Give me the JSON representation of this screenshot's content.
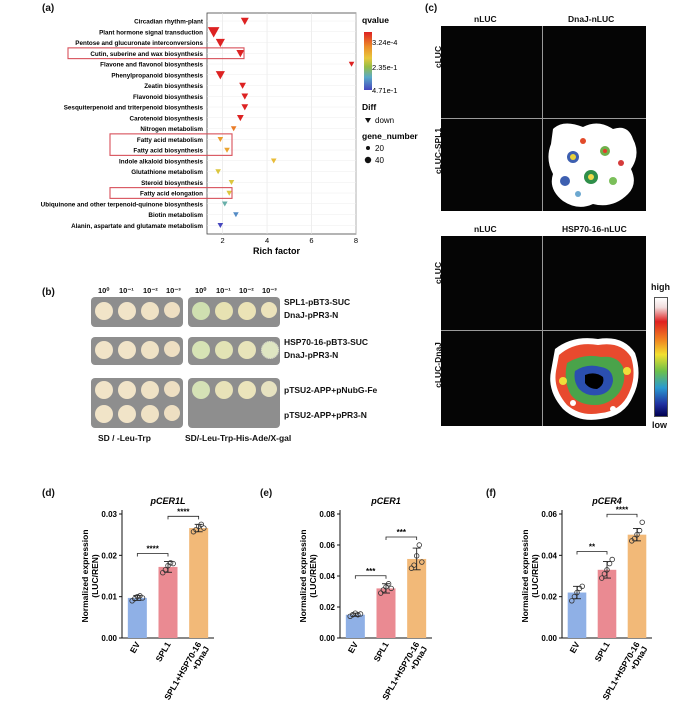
{
  "panel_labels": {
    "a": "(a)",
    "b": "(b)",
    "c": "(c)",
    "d": "(d)",
    "e": "(e)",
    "f": "(f)"
  },
  "chart_a": {
    "xlabel": "Rich factor",
    "xticks": [
      "2",
      "4",
      "6",
      "8"
    ],
    "legend": {
      "qvalue_title": "qvalue",
      "qvalue_labels": [
        "3.24e-4",
        "2.35e-1",
        "4.71e-1"
      ],
      "diff_title": "Diff",
      "diff_label": "down",
      "gene_title": "gene_number",
      "gene_labels": [
        "20",
        "40"
      ]
    }
  },
  "chart_data": [
    {
      "type": "scatter",
      "xlabel": "Rich factor",
      "xlim": [
        1.3,
        8.0
      ],
      "categories": [
        "Circadian rhythm-plant",
        "Plant hormone signal transduction",
        "Pentose and glucuronate interconversions",
        "Cutin, suberine and wax biosynthesis",
        "Flavone and flavonol biosynthesis",
        "Phenylpropanoid biosynthesis",
        "Zeatin biosynthesis",
        "Flavonoid biosynthesis",
        "Sesquiterpenoid and triterpenoid biosynthesis",
        "Carotenoid biosynthesis",
        "Nitrogen metabolism",
        "Fatty acid metabolism",
        "Fatty acid biosynthesis",
        "Indole alkaloid biosynthesis",
        "Glutathione metabolism",
        "Steroid biosynthesis",
        "Fatty acid elongation",
        "Ubiquinone and other terpenoid-quinone biosynthesis",
        "Biotin metabolism",
        "Alanin, aspartate and glutamate metabolism"
      ],
      "x": [
        3.0,
        1.6,
        1.9,
        2.8,
        7.8,
        1.9,
        2.9,
        3.0,
        3.0,
        2.8,
        2.5,
        1.9,
        2.2,
        4.3,
        1.8,
        2.4,
        2.3,
        2.1,
        2.6,
        1.9
      ],
      "qvalue": [
        0.0003,
        0.0003,
        0.0003,
        0.0003,
        0.0003,
        0.0003,
        0.0003,
        0.0003,
        0.0003,
        0.0003,
        0.08,
        0.12,
        0.13,
        0.17,
        0.2,
        0.2,
        0.2,
        0.32,
        0.38,
        0.47
      ],
      "gene_number": [
        30,
        45,
        35,
        30,
        20,
        35,
        25,
        25,
        25,
        25,
        20,
        20,
        20,
        20,
        20,
        20,
        20,
        20,
        20,
        20
      ],
      "highlighted": [
        "Cutin, suberine and wax biosynthesis",
        "Fatty acid metabolism",
        "Fatty acid biosynthesis",
        "Fatty acid elongation"
      ]
    },
    {
      "type": "bar",
      "title": "pCER1L",
      "ylabel": "Normalized expression (LUC/REN)",
      "categories": [
        "EV",
        "SPL1",
        "SPL1+HSP70-16 +DnaJ"
      ],
      "values": [
        0.0097,
        0.0172,
        0.0266
      ],
      "errors": [
        0.0006,
        0.0013,
        0.0009
      ],
      "points": [
        [
          0.009,
          0.0095,
          0.01,
          0.0102,
          0.0097
        ],
        [
          0.0158,
          0.0165,
          0.0175,
          0.0182,
          0.018
        ],
        [
          0.0257,
          0.0262,
          0.027,
          0.0275,
          0.0266
        ]
      ],
      "yticks": [
        "0.00",
        "0.01",
        "0.02",
        "0.03"
      ],
      "ylim": [
        0,
        0.03
      ],
      "sig": [
        "****",
        "****"
      ],
      "colors": [
        "#8fb0e6",
        "#ea8a92",
        "#f2b978"
      ]
    },
    {
      "type": "bar",
      "title": "pCER1",
      "ylabel": "Normalized expression (LUC/REN)",
      "categories": [
        "EV",
        "SPL1",
        "SPL1+HSP70-16 +DnaJ"
      ],
      "values": [
        0.015,
        0.032,
        0.051
      ],
      "errors": [
        0.001,
        0.003,
        0.007
      ],
      "points": [
        [
          0.014,
          0.015,
          0.016,
          0.015,
          0.0155
        ],
        [
          0.029,
          0.031,
          0.033,
          0.035,
          0.032
        ],
        [
          0.045,
          0.047,
          0.053,
          0.06,
          0.049
        ]
      ],
      "yticks": [
        "0.00",
        "0.02",
        "0.04",
        "0.06",
        "0.08"
      ],
      "ylim": [
        0,
        0.08
      ],
      "sig": [
        "***",
        "***"
      ],
      "colors": [
        "#8fb0e6",
        "#ea8a92",
        "#f2b978"
      ]
    },
    {
      "type": "bar",
      "title": "pCER4",
      "ylabel": "Normalized expression (LUC/REN)",
      "categories": [
        "EV",
        "SPL1",
        "SPL1+HSP70-16 +DnaJ"
      ],
      "values": [
        0.022,
        0.033,
        0.05
      ],
      "errors": [
        0.003,
        0.004,
        0.003
      ],
      "points": [
        [
          0.018,
          0.02,
          0.022,
          0.024,
          0.025
        ],
        [
          0.029,
          0.031,
          0.033,
          0.036,
          0.038
        ],
        [
          0.047,
          0.048,
          0.05,
          0.052,
          0.056
        ]
      ],
      "yticks": [
        "0.00",
        "0.02",
        "0.04",
        "0.06"
      ],
      "ylim": [
        0,
        0.06
      ],
      "sig": [
        "**",
        "****"
      ],
      "colors": [
        "#8fb0e6",
        "#ea8a92",
        "#f2b978"
      ]
    }
  ],
  "panel_b": {
    "dilutions": [
      "10⁰",
      "10⁻¹",
      "10⁻²",
      "10⁻³"
    ],
    "rows": [
      {
        "line1": "SPL1-pBT3-SUC",
        "line2": "DnaJ-pPR3-N"
      },
      {
        "line1": "HSP70-16-pBT3-SUC",
        "line2": "DnaJ-pPR3-N"
      },
      {
        "line1": "pTSU2-APP+pNubG-Fe",
        "line2": ""
      },
      {
        "line1": "pTSU2-APP+pPR3-N",
        "line2": ""
      }
    ],
    "plate_left": "SD / -Leu-Trp",
    "plate_right": "SD/-Leu-Trp-His-Ade/X-gal"
  },
  "panel_c": {
    "top": {
      "col1": "nLUC",
      "col2": "DnaJ-nLUC",
      "row1": "cLUC",
      "row2": "cLUC-SPL1"
    },
    "bottom": {
      "col1": "nLUC",
      "col2": "HSP70-16-nLUC",
      "row1": "cLUC",
      "row2": "cLUC-DnaJ"
    },
    "scale_high": "high",
    "scale_low": "low"
  }
}
